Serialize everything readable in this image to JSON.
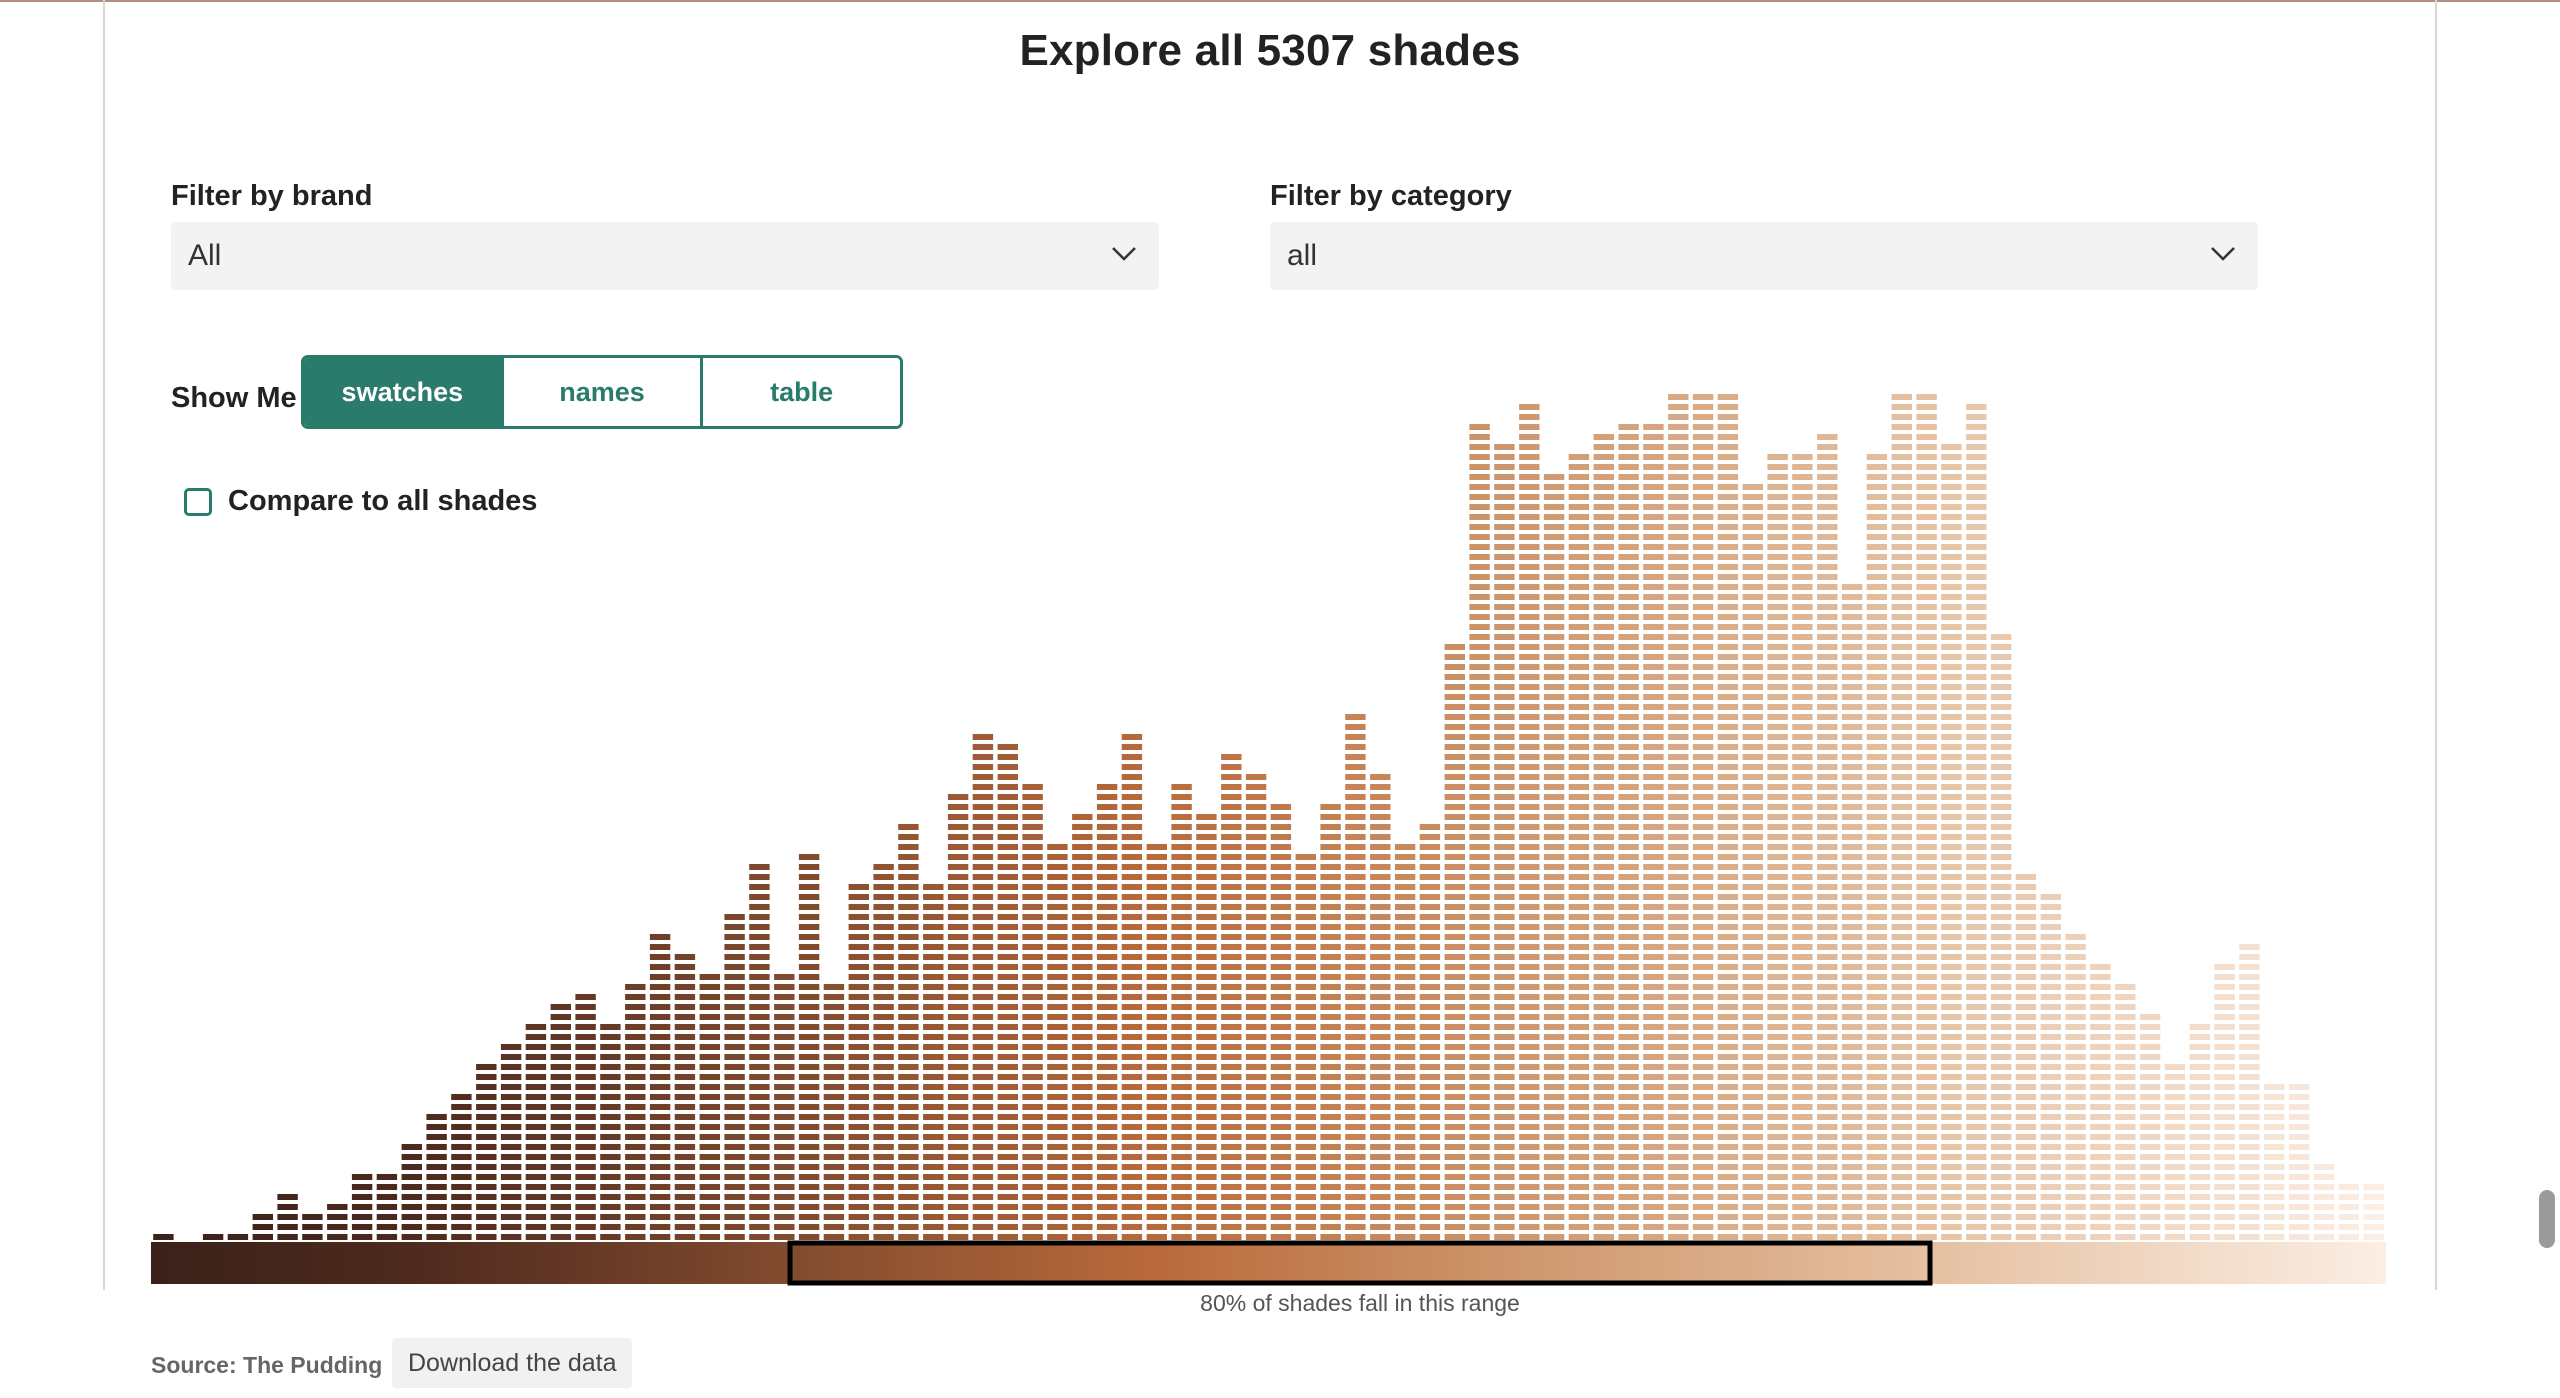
{
  "page": {
    "title": "Explore all 5307 shades"
  },
  "filters": {
    "brand": {
      "label": "Filter by brand",
      "value": "All"
    },
    "category": {
      "label": "Filter by category",
      "value": "all"
    }
  },
  "show_me": {
    "label": "Show Me",
    "options": [
      "swatches",
      "names",
      "table"
    ],
    "selected": "swatches"
  },
  "compare": {
    "label": "Compare to all shades",
    "checked": false
  },
  "colors": {
    "accent": "#2a7b6c",
    "scale_dark": "#3a2119",
    "scale_mid": "#b96a3b",
    "scale_light": "#fbeee4"
  },
  "chart_data": {
    "type": "bar",
    "unit": "swatches stacked per lightness bin",
    "bins": 90,
    "values": [
      1,
      0,
      1,
      1,
      3,
      5,
      3,
      4,
      7,
      7,
      10,
      13,
      15,
      18,
      20,
      22,
      24,
      25,
      22,
      26,
      31,
      29,
      27,
      33,
      38,
      27,
      39,
      26,
      36,
      38,
      42,
      36,
      45,
      51,
      50,
      46,
      40,
      43,
      46,
      51,
      40,
      46,
      43,
      49,
      47,
      44,
      39,
      44,
      53,
      47,
      40,
      42,
      60,
      82,
      80,
      84,
      77,
      79,
      81,
      82,
      82,
      86,
      86,
      86,
      76,
      79,
      79,
      81,
      66,
      79,
      86,
      86,
      80,
      84,
      61,
      37,
      35,
      31,
      28,
      26,
      23,
      18,
      22,
      28,
      30,
      16,
      16,
      8,
      6,
      6
    ],
    "scale_range_label": "80% of shades fall in this range",
    "scale_range_percent": 80
  },
  "footer": {
    "source": "Source: The Pudding",
    "download_label": "Download the data"
  }
}
